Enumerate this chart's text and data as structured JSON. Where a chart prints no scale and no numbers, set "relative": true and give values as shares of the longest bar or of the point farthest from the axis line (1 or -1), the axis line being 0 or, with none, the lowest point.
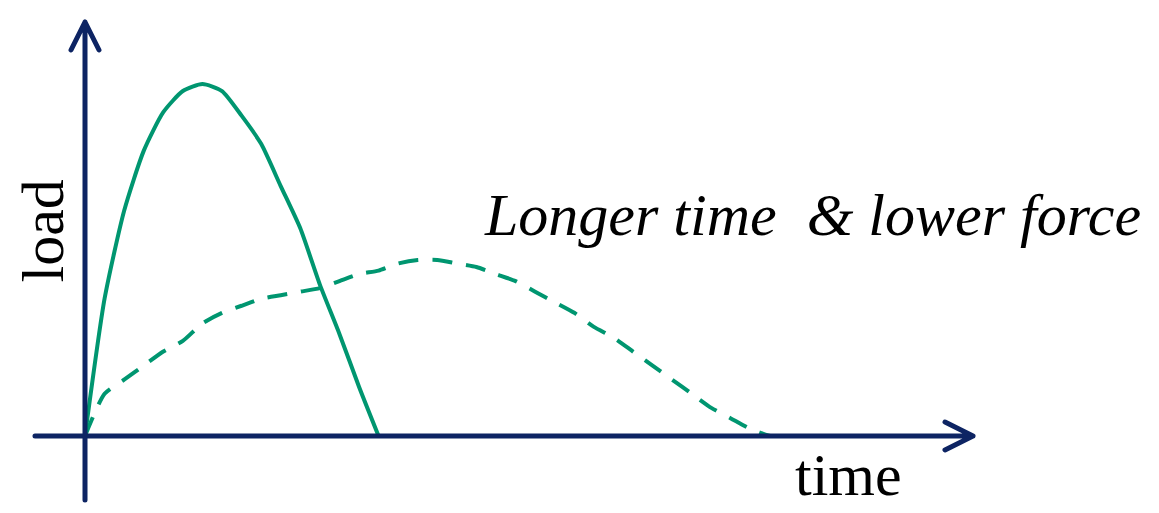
{
  "chart_data": {
    "type": "line",
    "relative": true,
    "xlabel": "time",
    "ylabel": "load",
    "annotations": [
      "Longer time  & lower force"
    ],
    "categories": [
      null,
      null,
      null,
      null,
      null,
      null,
      null,
      null,
      null,
      null,
      null,
      null,
      null,
      null,
      null,
      null,
      null,
      null,
      null,
      null,
      null,
      null,
      null,
      null,
      null,
      null,
      null,
      null,
      null,
      null,
      null,
      null,
      null,
      null,
      null,
      null
    ],
    "series": [
      {
        "color": "#009670",
        "line_style": "solid",
        "values": [
          0,
          0.39,
          0.64,
          0.81,
          0.92,
          0.98,
          1,
          0.98,
          0.91,
          0.83,
          0.71,
          0.59,
          0.43,
          0.29,
          0.14,
          0,
          null,
          null,
          null,
          null,
          null,
          null,
          null,
          null,
          null,
          null,
          null,
          null,
          null,
          null,
          null,
          null,
          null,
          null,
          null,
          null
        ]
      },
      {
        "color": "#009670",
        "line_style": "dashed",
        "values": [
          0,
          0.12,
          0.16,
          0.2,
          0.24,
          0.27,
          0.32,
          0.35,
          0.37,
          0.39,
          0.4,
          0.41,
          0.42,
          0.44,
          0.46,
          0.47,
          0.49,
          0.5,
          0.5,
          0.49,
          0.48,
          0.46,
          0.44,
          0.41,
          0.38,
          0.35,
          0.31,
          0.28,
          0.24,
          0.2,
          0.16,
          0.12,
          0.08,
          0.05,
          0.02,
          0
        ]
      }
    ]
  }
}
